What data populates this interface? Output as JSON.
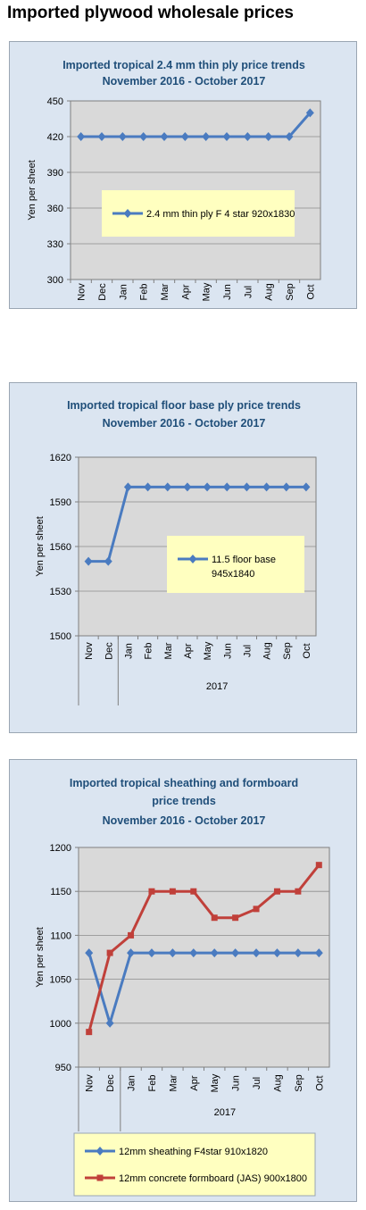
{
  "page": {
    "title": "Imported plywood wholesale prices"
  },
  "colors": {
    "panel_bg": "#dbe5f1",
    "plot_bg": "#d9d9d9",
    "legend_bg": "#ffffc0",
    "title": "#1f4e79",
    "blue": "#4a7bc0",
    "red": "#c0403a"
  },
  "chart_data": [
    {
      "type": "line",
      "title": [
        "Imported tropical 2.4 mm thin ply price trends",
        "November 2016 - October 2017"
      ],
      "ylabel": "Yen per sheet",
      "xlabel": "",
      "year_label": "",
      "categories": [
        "Nov",
        "Dec",
        "Jan",
        "Feb",
        "Mar",
        "Apr",
        "May",
        "Jun",
        "Jul",
        "Aug",
        "Sep",
        "Oct"
      ],
      "ylim": [
        300,
        450
      ],
      "yticks": [
        300,
        330,
        360,
        390,
        420,
        450
      ],
      "grid": true,
      "series": [
        {
          "name": "2.4 mm thin ply F 4 star 920x1830",
          "color": "#4a7bc0",
          "marker": "diamond",
          "values": [
            420,
            420,
            420,
            420,
            420,
            420,
            420,
            420,
            420,
            420,
            420,
            440
          ]
        }
      ],
      "legend": {
        "placement": "inside-center"
      }
    },
    {
      "type": "line",
      "title": [
        "Imported tropical floor base ply price trends",
        "November 2016 - October 2017"
      ],
      "ylabel": "Yen per sheet",
      "xlabel": "",
      "year_label": "2017",
      "categories": [
        "Nov",
        "Dec",
        "Jan",
        "Feb",
        "Mar",
        "Apr",
        "May",
        "Jun",
        "Jul",
        "Aug",
        "Sep",
        "Oct"
      ],
      "ylim": [
        1500,
        1620
      ],
      "yticks": [
        1500,
        1530,
        1560,
        1590,
        1620
      ],
      "grid": true,
      "series": [
        {
          "name": "11.5 floor base 945x1840",
          "legend_lines": [
            "11.5 floor base",
            "945x1840"
          ],
          "color": "#4a7bc0",
          "marker": "diamond",
          "values": [
            1550,
            1550,
            1600,
            1600,
            1600,
            1600,
            1600,
            1600,
            1600,
            1600,
            1600,
            1600
          ]
        }
      ],
      "legend": {
        "placement": "inside-center-right"
      }
    },
    {
      "type": "line",
      "title": [
        "Imported tropical sheathing and formboard",
        "price trends",
        "November 2016 - October 2017"
      ],
      "ylabel": "Yen per sheet",
      "xlabel": "",
      "year_label": "2017",
      "categories": [
        "Nov",
        "Dec",
        "Jan",
        "Feb",
        "Mar",
        "Apr",
        "May",
        "Jun",
        "Jul",
        "Aug",
        "Sep",
        "Oct"
      ],
      "ylim": [
        950,
        1200
      ],
      "yticks": [
        950,
        1000,
        1050,
        1100,
        1150,
        1200
      ],
      "grid": true,
      "series": [
        {
          "name": "12mm sheathing F4star 910x1820",
          "color": "#4a7bc0",
          "marker": "diamond",
          "values": [
            1080,
            1000,
            1080,
            1080,
            1080,
            1080,
            1080,
            1080,
            1080,
            1080,
            1080,
            1080
          ]
        },
        {
          "name": "12mm concrete formboard (JAS) 900x1800",
          "color": "#c0403a",
          "marker": "square",
          "values": [
            990,
            1080,
            1100,
            1150,
            1150,
            1150,
            1120,
            1120,
            1130,
            1150,
            1150,
            1180
          ]
        }
      ],
      "legend": {
        "placement": "bottom"
      }
    }
  ]
}
